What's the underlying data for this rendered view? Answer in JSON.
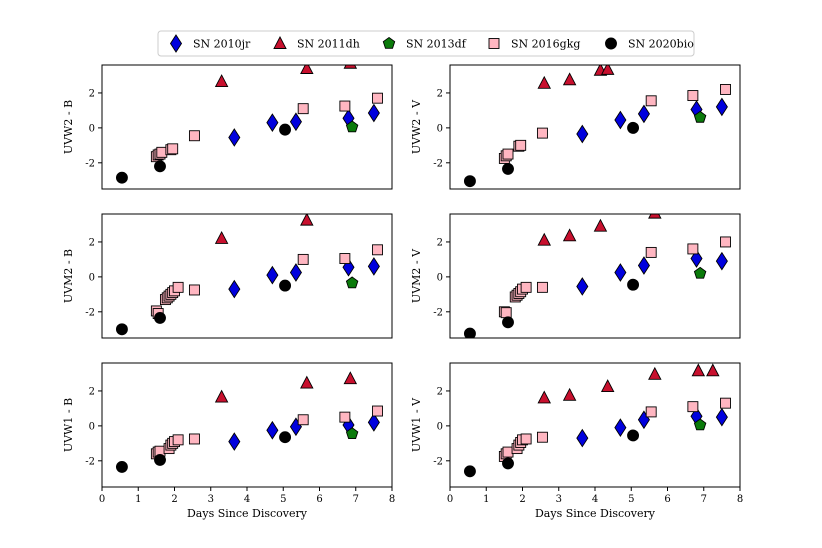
{
  "legend": [
    {
      "name": "SN 2010jr",
      "marker": "diamond",
      "color": "#0000dd"
    },
    {
      "name": "SN 2011dh",
      "marker": "triangle",
      "color": "#c8102e"
    },
    {
      "name": "SN 2013df",
      "marker": "pentagon",
      "color": "#0a7a0a"
    },
    {
      "name": "SN 2016gkg",
      "marker": "square",
      "color": "#ffb6c1"
    },
    {
      "name": "SN 2020bio",
      "marker": "circle",
      "color": "#000000"
    }
  ],
  "chart_data": [
    {
      "type": "scatter",
      "ylabel": "UVW2 - B",
      "xlabel": "",
      "xlim": [
        0,
        8
      ],
      "ylim": [
        -3.5,
        3.6
      ],
      "yticks": [
        -2,
        0,
        2
      ],
      "xticks": [],
      "series": [
        {
          "name": "SN 2010jr",
          "x": [
            3.65,
            4.7,
            5.35,
            6.8,
            7.5
          ],
          "y": [
            -0.55,
            0.3,
            0.35,
            0.55,
            0.85
          ]
        },
        {
          "name": "SN 2011dh",
          "x": [
            3.3,
            5.65,
            6.85
          ],
          "y": [
            2.65,
            3.4,
            3.7
          ]
        },
        {
          "name": "SN 2013df",
          "x": [
            6.9
          ],
          "y": [
            0.05
          ]
        },
        {
          "name": "SN 2016gkg",
          "x": [
            1.5,
            1.55,
            1.6,
            1.65,
            1.9,
            1.95,
            2.55,
            5.55,
            6.7,
            7.6
          ],
          "y": [
            -1.65,
            -1.55,
            -1.5,
            -1.4,
            -1.25,
            -1.2,
            -0.45,
            1.1,
            1.25,
            1.7
          ]
        },
        {
          "name": "SN 2020bio",
          "x": [
            0.55,
            1.6,
            5.05
          ],
          "y": [
            -2.85,
            -2.2,
            -0.1
          ]
        }
      ]
    },
    {
      "type": "scatter",
      "ylabel": "UVW2 - V",
      "xlabel": "",
      "xlim": [
        0,
        8
      ],
      "ylim": [
        -3.5,
        3.6
      ],
      "yticks": [
        -2,
        0,
        2
      ],
      "xticks": [],
      "series": [
        {
          "name": "SN 2010jr",
          "x": [
            3.65,
            4.7,
            5.35,
            6.8,
            7.5
          ],
          "y": [
            -0.35,
            0.45,
            0.8,
            1.05,
            1.2
          ]
        },
        {
          "name": "SN 2011dh",
          "x": [
            2.6,
            3.3,
            4.15,
            4.35
          ],
          "y": [
            2.55,
            2.75,
            3.3,
            3.35
          ]
        },
        {
          "name": "SN 2013df",
          "x": [
            6.9
          ],
          "y": [
            0.6
          ]
        },
        {
          "name": "SN 2016gkg",
          "x": [
            1.5,
            1.55,
            1.6,
            1.9,
            1.95,
            2.55,
            5.55,
            6.7,
            7.6
          ],
          "y": [
            -1.75,
            -1.6,
            -1.5,
            -1.05,
            -1.0,
            -0.3,
            1.55,
            1.85,
            2.2
          ]
        },
        {
          "name": "SN 2020bio",
          "x": [
            0.55,
            1.6,
            5.05
          ],
          "y": [
            -3.05,
            -2.35,
            0.0
          ]
        }
      ]
    },
    {
      "type": "scatter",
      "ylabel": "UVM2 - B",
      "xlabel": "",
      "xlim": [
        0,
        8
      ],
      "ylim": [
        -3.5,
        3.6
      ],
      "yticks": [
        -2,
        0,
        2
      ],
      "xticks": [],
      "series": [
        {
          "name": "SN 2010jr",
          "x": [
            3.65,
            4.7,
            5.35,
            6.8,
            7.5
          ],
          "y": [
            -0.7,
            0.1,
            0.25,
            0.55,
            0.6
          ]
        },
        {
          "name": "SN 2011dh",
          "x": [
            3.3,
            5.65
          ],
          "y": [
            2.2,
            3.25
          ]
        },
        {
          "name": "SN 2013df",
          "x": [
            6.9
          ],
          "y": [
            -0.35
          ]
        },
        {
          "name": "SN 2016gkg",
          "x": [
            1.5,
            1.55,
            1.75,
            1.8,
            1.85,
            1.9,
            1.95,
            2.0,
            2.1,
            2.55,
            5.55,
            6.7,
            7.6
          ],
          "y": [
            -1.95,
            -2.1,
            -1.3,
            -1.2,
            -1.1,
            -1.0,
            -0.9,
            -0.8,
            -0.6,
            -0.75,
            1.0,
            1.05,
            1.55
          ]
        },
        {
          "name": "SN 2020bio",
          "x": [
            0.55,
            1.6,
            5.05
          ],
          "y": [
            -3.0,
            -2.35,
            -0.5
          ]
        }
      ]
    },
    {
      "type": "scatter",
      "ylabel": "UVM2 - V",
      "xlabel": "",
      "xlim": [
        0,
        8
      ],
      "ylim": [
        -3.5,
        3.6
      ],
      "yticks": [
        -2,
        0,
        2
      ],
      "xticks": [],
      "series": [
        {
          "name": "SN 2010jr",
          "x": [
            3.65,
            4.7,
            5.35,
            6.8,
            7.5
          ],
          "y": [
            -0.55,
            0.25,
            0.65,
            1.05,
            0.9
          ]
        },
        {
          "name": "SN 2011dh",
          "x": [
            2.6,
            3.3,
            4.15,
            5.65
          ],
          "y": [
            2.1,
            2.35,
            2.9,
            3.65
          ]
        },
        {
          "name": "SN 2013df",
          "x": [
            6.9
          ],
          "y": [
            0.2
          ]
        },
        {
          "name": "SN 2016gkg",
          "x": [
            1.5,
            1.55,
            1.8,
            1.85,
            1.9,
            1.95,
            2.0,
            2.1,
            2.55,
            5.55,
            6.7,
            7.6
          ],
          "y": [
            -2.0,
            -2.05,
            -1.15,
            -1.05,
            -0.95,
            -0.85,
            -0.7,
            -0.6,
            -0.6,
            1.4,
            1.6,
            2.0
          ]
        },
        {
          "name": "SN 2020bio",
          "x": [
            0.55,
            1.6,
            5.05
          ],
          "y": [
            -3.25,
            -2.6,
            -0.45
          ]
        }
      ]
    },
    {
      "type": "scatter",
      "ylabel": "UVW1 - B",
      "xlabel": "Days Since Discovery",
      "xlim": [
        0,
        8
      ],
      "ylim": [
        -3.5,
        3.6
      ],
      "yticks": [
        -2,
        0,
        2
      ],
      "xticks": [
        0,
        1,
        2,
        3,
        4,
        5,
        6,
        7,
        8
      ],
      "series": [
        {
          "name": "SN 2010jr",
          "x": [
            3.65,
            4.7,
            5.35,
            6.8,
            7.5
          ],
          "y": [
            -0.9,
            -0.25,
            -0.05,
            0.05,
            0.2
          ]
        },
        {
          "name": "SN 2011dh",
          "x": [
            3.3,
            5.65,
            6.85
          ],
          "y": [
            1.65,
            2.45,
            2.7
          ]
        },
        {
          "name": "SN 2013df",
          "x": [
            6.9
          ],
          "y": [
            -0.45
          ]
        },
        {
          "name": "SN 2016gkg",
          "x": [
            1.5,
            1.55,
            1.6,
            1.85,
            1.9,
            1.95,
            2.0,
            2.1,
            2.55,
            5.55,
            6.7,
            7.6
          ],
          "y": [
            -1.6,
            -1.5,
            -1.45,
            -1.3,
            -1.1,
            -1.0,
            -0.9,
            -0.8,
            -0.75,
            0.35,
            0.5,
            0.85
          ]
        },
        {
          "name": "SN 2020bio",
          "x": [
            0.55,
            1.6,
            5.05
          ],
          "y": [
            -2.35,
            -1.95,
            -0.65
          ]
        }
      ]
    },
    {
      "type": "scatter",
      "ylabel": "UVW1 - V",
      "xlabel": "Days Since Discovery",
      "xlim": [
        0,
        8
      ],
      "ylim": [
        -3.5,
        3.6
      ],
      "yticks": [
        -2,
        0,
        2
      ],
      "xticks": [
        0,
        1,
        2,
        3,
        4,
        5,
        6,
        7,
        8
      ],
      "series": [
        {
          "name": "SN 2010jr",
          "x": [
            3.65,
            4.7,
            5.35,
            6.8,
            7.5
          ],
          "y": [
            -0.7,
            -0.1,
            0.35,
            0.55,
            0.5
          ]
        },
        {
          "name": "SN 2011dh",
          "x": [
            2.6,
            3.3,
            4.35,
            5.65,
            6.85,
            7.25
          ],
          "y": [
            1.6,
            1.75,
            2.25,
            2.95,
            3.15,
            3.15
          ]
        },
        {
          "name": "SN 2013df",
          "x": [
            6.9
          ],
          "y": [
            0.05
          ]
        },
        {
          "name": "SN 2016gkg",
          "x": [
            1.5,
            1.55,
            1.6,
            1.85,
            1.9,
            1.95,
            2.0,
            2.1,
            2.55,
            5.55,
            6.7,
            7.6
          ],
          "y": [
            -1.75,
            -1.6,
            -1.5,
            -1.3,
            -1.1,
            -0.95,
            -0.8,
            -0.75,
            -0.65,
            0.8,
            1.1,
            1.3
          ]
        },
        {
          "name": "SN 2020bio",
          "x": [
            0.55,
            1.6,
            5.05
          ],
          "y": [
            -2.6,
            -2.15,
            -0.55
          ]
        }
      ]
    }
  ]
}
